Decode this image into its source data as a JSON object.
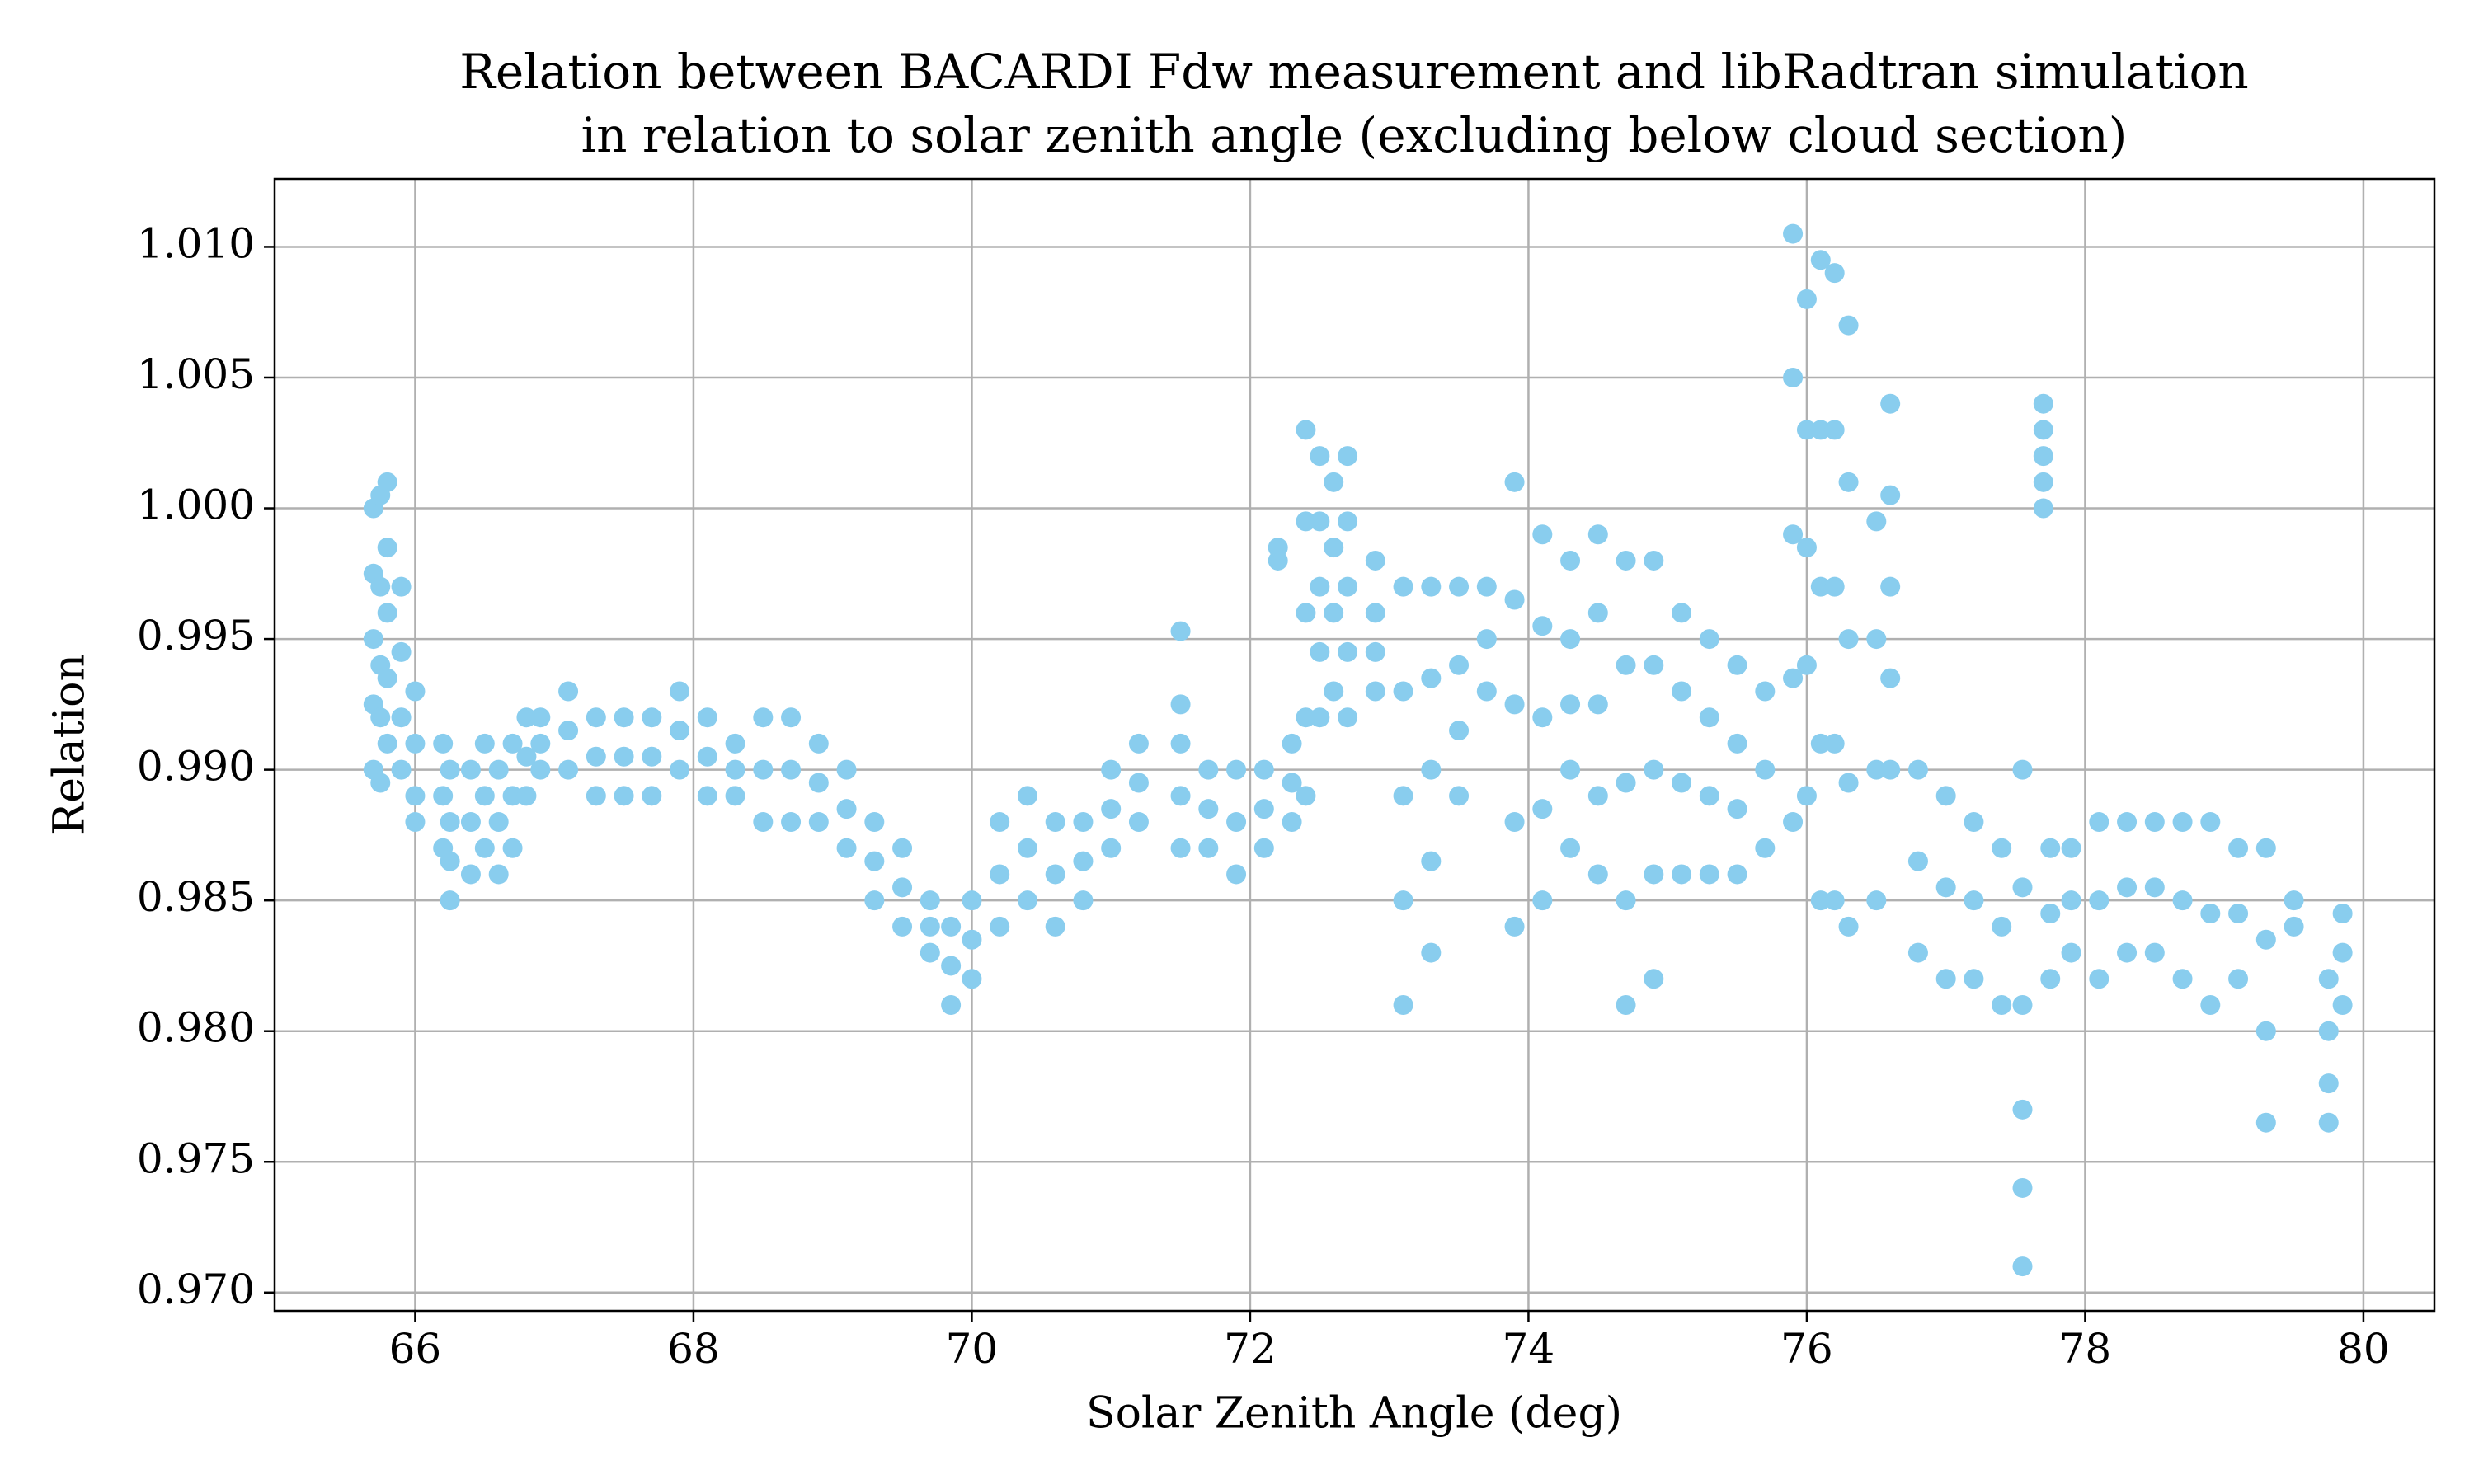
{
  "chart_data": {
    "type": "scatter",
    "title": [
      "Relation between BACARDI Fdw measurement and libRadtran simulation",
      "in relation to solar zenith angle (excluding below cloud section)"
    ],
    "xlabel": "Solar Zenith Angle (deg)",
    "ylabel": "Relation",
    "color": "#89cdee",
    "grid": true,
    "xlim": [
      64.99,
      80.51
    ],
    "ylim": [
      0.9693,
      1.0126
    ],
    "xticks": [
      66,
      68,
      70,
      72,
      74,
      76,
      78,
      80
    ],
    "yticks": [
      {
        "value": 0.97,
        "label": "0.970"
      },
      0.975,
      {
        "value": 0.98,
        "label": "0.980"
      },
      0.985,
      {
        "value": 0.99,
        "label": "0.990"
      },
      0.995,
      {
        "value": 1.0,
        "label": "1.000"
      },
      1.005,
      {
        "value": 1.01,
        "label": "1.010"
      }
    ],
    "x": [
      65.7,
      65.7,
      65.7,
      65.7,
      65.7,
      65.75,
      65.75,
      65.75,
      65.75,
      65.75,
      65.8,
      65.8,
      65.8,
      65.8,
      65.8,
      65.9,
      65.9,
      65.9,
      65.9,
      66.0,
      66.0,
      66.0,
      66.0,
      66.2,
      66.2,
      66.2,
      66.25,
      66.25,
      66.25,
      66.25,
      66.4,
      66.4,
      66.4,
      66.5,
      66.5,
      66.5,
      66.6,
      66.6,
      66.6,
      66.7,
      66.7,
      66.7,
      66.8,
      66.8,
      66.8,
      66.9,
      66.9,
      66.9,
      67.1,
      67.1,
      67.1,
      67.3,
      67.3,
      67.3,
      67.5,
      67.5,
      67.5,
      67.7,
      67.7,
      67.7,
      67.9,
      67.9,
      67.9,
      68.1,
      68.1,
      68.1,
      68.3,
      68.3,
      68.3,
      68.5,
      68.5,
      68.5,
      68.7,
      68.7,
      68.7,
      68.9,
      68.9,
      68.9,
      69.1,
      69.1,
      69.1,
      69.3,
      69.3,
      69.3,
      69.5,
      69.5,
      69.5,
      69.7,
      69.7,
      69.7,
      69.85,
      69.85,
      69.85,
      70.0,
      70.0,
      70.0,
      70.2,
      70.2,
      70.2,
      70.4,
      70.4,
      70.4,
      70.6,
      70.6,
      70.6,
      70.8,
      70.8,
      70.8,
      71.0,
      71.0,
      71.0,
      71.2,
      71.2,
      71.2,
      71.5,
      71.5,
      71.5,
      71.5,
      71.5,
      71.7,
      71.7,
      71.7,
      71.9,
      71.9,
      71.9,
      72.1,
      72.1,
      72.1,
      72.2,
      72.2,
      72.3,
      72.3,
      72.3,
      72.4,
      72.4,
      72.4,
      72.4,
      72.4,
      72.5,
      72.5,
      72.5,
      72.5,
      72.5,
      72.6,
      72.6,
      72.6,
      72.6,
      72.7,
      72.7,
      72.7,
      72.7,
      72.7,
      72.9,
      72.9,
      72.9,
      72.9,
      73.1,
      73.1,
      73.1,
      73.1,
      73.1,
      73.3,
      73.3,
      73.3,
      73.3,
      73.3,
      73.5,
      73.5,
      73.5,
      73.5,
      73.7,
      73.7,
      73.7,
      73.9,
      73.9,
      73.9,
      73.9,
      73.9,
      74.1,
      74.1,
      74.1,
      74.1,
      74.1,
      74.3,
      74.3,
      74.3,
      74.3,
      74.3,
      74.5,
      74.5,
      74.5,
      74.5,
      74.5,
      74.7,
      74.7,
      74.7,
      74.7,
      74.7,
      74.9,
      74.9,
      74.9,
      74.9,
      74.9,
      75.1,
      75.1,
      75.1,
      75.1,
      75.3,
      75.3,
      75.3,
      75.3,
      75.5,
      75.5,
      75.5,
      75.5,
      75.7,
      75.7,
      75.7,
      75.9,
      75.9,
      75.9,
      75.9,
      75.9,
      76.0,
      76.0,
      76.0,
      76.0,
      76.0,
      76.1,
      76.1,
      76.1,
      76.1,
      76.1,
      76.2,
      76.2,
      76.2,
      76.2,
      76.2,
      76.3,
      76.3,
      76.3,
      76.3,
      76.3,
      76.5,
      76.5,
      76.5,
      76.5,
      76.6,
      76.6,
      76.6,
      76.6,
      76.6,
      76.8,
      76.8,
      76.8,
      77.0,
      77.0,
      77.0,
      77.2,
      77.2,
      77.2,
      77.4,
      77.4,
      77.4,
      77.55,
      77.55,
      77.55,
      77.55,
      77.55,
      77.55,
      77.7,
      77.7,
      77.7,
      77.7,
      77.7,
      77.75,
      77.75,
      77.75,
      77.9,
      77.9,
      77.9,
      78.1,
      78.1,
      78.1,
      78.3,
      78.3,
      78.3,
      78.5,
      78.5,
      78.5,
      78.7,
      78.7,
      78.7,
      78.9,
      78.9,
      78.9,
      79.1,
      79.1,
      79.1,
      79.3,
      79.3,
      79.3,
      79.3,
      79.5,
      79.5,
      79.75,
      79.75,
      79.75,
      79.75,
      79.85,
      79.85,
      79.85
    ],
    "values": [
      0.99,
      0.9925,
      0.995,
      0.9975,
      1.0,
      0.9895,
      0.992,
      0.994,
      0.997,
      1.0005,
      0.991,
      0.9935,
      0.996,
      0.9985,
      1.001,
      0.99,
      0.992,
      0.9945,
      0.997,
      0.988,
      0.989,
      0.991,
      0.993,
      0.987,
      0.989,
      0.991,
      0.985,
      0.9865,
      0.988,
      0.99,
      0.986,
      0.988,
      0.99,
      0.987,
      0.989,
      0.991,
      0.986,
      0.988,
      0.99,
      0.987,
      0.989,
      0.991,
      0.989,
      0.9905,
      0.992,
      0.99,
      0.991,
      0.992,
      0.99,
      0.9915,
      0.993,
      0.989,
      0.9905,
      0.992,
      0.989,
      0.9905,
      0.992,
      0.989,
      0.9905,
      0.992,
      0.99,
      0.9915,
      0.993,
      0.989,
      0.9905,
      0.992,
      0.989,
      0.99,
      0.991,
      0.988,
      0.99,
      0.992,
      0.988,
      0.99,
      0.992,
      0.988,
      0.9895,
      0.991,
      0.987,
      0.9885,
      0.99,
      0.985,
      0.9865,
      0.988,
      0.984,
      0.9855,
      0.987,
      0.983,
      0.984,
      0.985,
      0.981,
      0.9825,
      0.984,
      0.982,
      0.9835,
      0.985,
      0.984,
      0.986,
      0.988,
      0.985,
      0.987,
      0.989,
      0.984,
      0.986,
      0.988,
      0.985,
      0.9865,
      0.988,
      0.987,
      0.9885,
      0.99,
      0.988,
      0.9895,
      0.991,
      0.987,
      0.989,
      0.991,
      0.9925,
      0.9953,
      0.987,
      0.9885,
      0.99,
      0.986,
      0.988,
      0.99,
      0.987,
      0.9885,
      0.99,
      0.998,
      0.9985,
      0.988,
      0.9895,
      0.991,
      0.989,
      0.992,
      0.996,
      0.9995,
      1.003,
      0.992,
      0.9945,
      0.997,
      0.9995,
      1.002,
      0.993,
      0.996,
      0.9985,
      1.001,
      0.992,
      0.9945,
      0.997,
      0.9995,
      1.002,
      0.993,
      0.9945,
      0.996,
      0.998,
      0.981,
      0.985,
      0.989,
      0.993,
      0.997,
      0.983,
      0.9865,
      0.99,
      0.9935,
      0.997,
      0.989,
      0.9915,
      0.994,
      0.997,
      0.993,
      0.995,
      0.997,
      0.984,
      0.988,
      0.9925,
      0.9965,
      1.001,
      0.985,
      0.9885,
      0.992,
      0.9955,
      0.999,
      0.987,
      0.99,
      0.9925,
      0.995,
      0.998,
      0.986,
      0.989,
      0.9925,
      0.996,
      0.999,
      0.981,
      0.985,
      0.9895,
      0.994,
      0.998,
      0.982,
      0.986,
      0.99,
      0.994,
      0.998,
      0.986,
      0.9895,
      0.993,
      0.996,
      0.986,
      0.989,
      0.992,
      0.995,
      0.986,
      0.9885,
      0.991,
      0.994,
      0.987,
      0.99,
      0.993,
      0.988,
      0.9935,
      0.999,
      1.005,
      1.0105,
      0.989,
      0.994,
      0.9985,
      1.003,
      1.008,
      0.985,
      0.991,
      0.997,
      1.003,
      1.0095,
      0.985,
      0.991,
      0.997,
      1.003,
      1.009,
      0.984,
      0.9895,
      0.995,
      1.001,
      1.007,
      0.985,
      0.99,
      0.995,
      0.9995,
      0.99,
      0.9935,
      0.997,
      1.0005,
      1.004,
      0.983,
      0.9865,
      0.99,
      0.982,
      0.9855,
      0.989,
      0.982,
      0.985,
      0.988,
      0.981,
      0.984,
      0.987,
      0.971,
      0.974,
      0.977,
      0.981,
      0.9855,
      0.99,
      1.0,
      1.001,
      1.002,
      1.003,
      1.004,
      0.982,
      0.9845,
      0.987,
      0.983,
      0.985,
      0.987,
      0.982,
      0.985,
      0.988,
      0.983,
      0.9855,
      0.988,
      0.983,
      0.9855,
      0.988,
      0.982,
      0.985,
      0.988,
      0.981,
      0.9845,
      0.988,
      0.982,
      0.9845,
      0.987,
      0.9765,
      0.98,
      0.9835,
      0.987,
      0.984,
      0.985,
      0.9765,
      0.978,
      0.98,
      0.982,
      0.981,
      0.983,
      0.9845
    ]
  }
}
